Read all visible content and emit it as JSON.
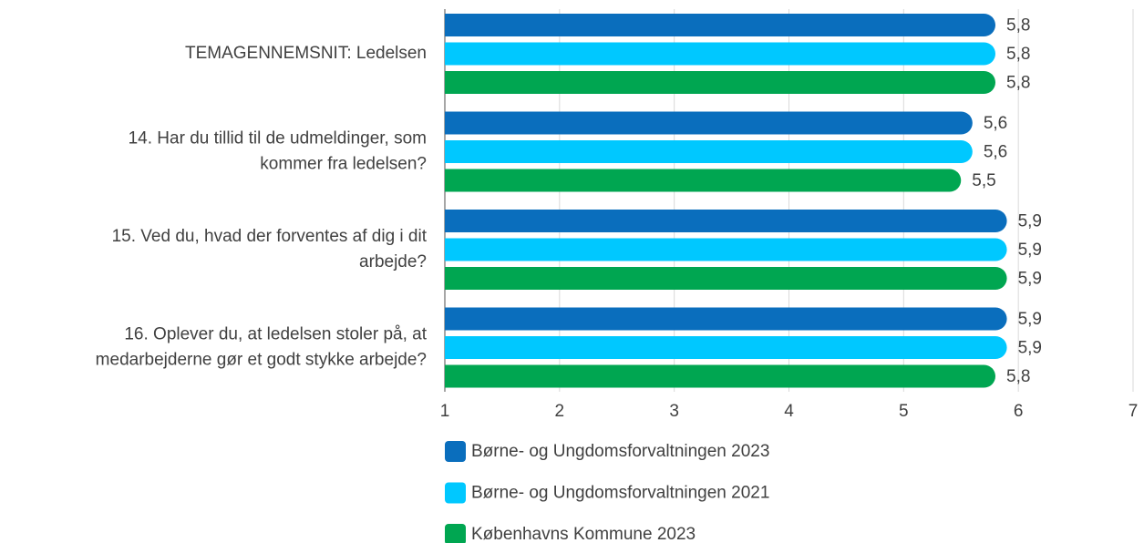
{
  "chart_data": {
    "type": "bar",
    "orientation": "horizontal",
    "categories": [
      [
        "TEMAGENNEMSNIT: Ledelsen"
      ],
      [
        "14. Har du tillid til de udmeldinger, som",
        "kommer fra ledelsen?"
      ],
      [
        "15. Ved du, hvad der forventes af dig i dit",
        "arbejde?"
      ],
      [
        "16. Oplever du, at ledelsen stoler på, at",
        "medarbejderne gør et godt stykke arbejde?"
      ]
    ],
    "series": [
      {
        "name": "Børne- og Ungdomsforvaltningen 2023",
        "color": "#0a6ebd",
        "values": [
          5.8,
          5.6,
          5.9,
          5.9
        ],
        "value_labels": [
          "5,8",
          "5,6",
          "5,9",
          "5,9"
        ]
      },
      {
        "name": "Børne- og Ungdomsforvaltningen 2021",
        "color": "#00c8ff",
        "values": [
          5.8,
          5.6,
          5.9,
          5.9
        ],
        "value_labels": [
          "5,8",
          "5,6",
          "5,9",
          "5,9"
        ]
      },
      {
        "name": "Københavns Kommune 2023",
        "color": "#00a651",
        "values": [
          5.8,
          5.5,
          5.9,
          5.8
        ],
        "value_labels": [
          "5,8",
          "5,5",
          "5,9",
          "5,8"
        ]
      }
    ],
    "xlim": [
      1,
      7
    ],
    "xticks": [
      1,
      2,
      3,
      4,
      5,
      6,
      7
    ],
    "grid": true
  }
}
